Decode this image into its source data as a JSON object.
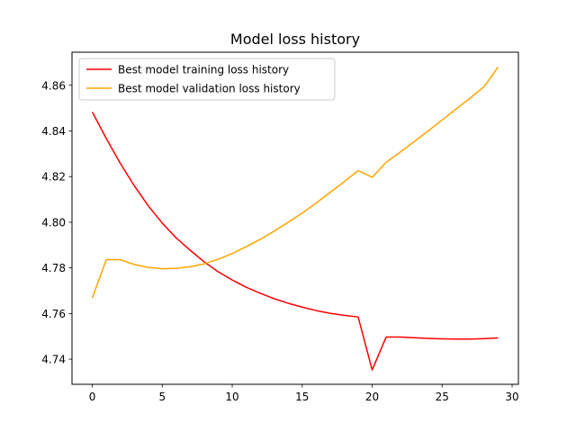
{
  "chart_data": {
    "type": "line",
    "title": "Model loss history",
    "xlabel": "",
    "ylabel": "",
    "xlim": [
      -1.45,
      30.45
    ],
    "ylim": [
      4.729,
      4.8745
    ],
    "x_ticks": [
      0,
      5,
      10,
      15,
      20,
      25,
      30
    ],
    "y_ticks": [
      4.74,
      4.76,
      4.78,
      4.8,
      4.82,
      4.84,
      4.86
    ],
    "grid": false,
    "legend_position": "top-left",
    "series": [
      {
        "name": "Best model training loss history",
        "color": "#ff0000",
        "x": [
          0,
          1,
          2,
          3,
          4,
          5,
          6,
          7,
          8,
          9,
          10,
          11,
          12,
          13,
          14,
          15,
          16,
          17,
          18,
          19,
          20,
          21,
          22,
          23,
          24,
          25,
          26,
          27,
          28,
          29
        ],
        "values": [
          4.8483,
          4.8367,
          4.8258,
          4.816,
          4.8072,
          4.7996,
          4.7931,
          4.7877,
          4.7826,
          4.7783,
          4.7747,
          4.7715,
          4.7689,
          4.7665,
          4.7645,
          4.7628,
          4.7613,
          4.7601,
          4.7592,
          4.7585,
          4.7353,
          4.7497,
          4.7497,
          4.7494,
          4.7491,
          4.7489,
          4.7488,
          4.7488,
          4.749,
          4.7493
        ]
      },
      {
        "name": "Best model validation loss history",
        "color": "#ffa500",
        "x": [
          0,
          1,
          2,
          3,
          4,
          5,
          6,
          7,
          8,
          9,
          10,
          11,
          12,
          13,
          14,
          15,
          16,
          17,
          18,
          19,
          20,
          21,
          22,
          23,
          24,
          25,
          26,
          27,
          28,
          29
        ],
        "values": [
          4.7668,
          4.7836,
          4.7836,
          4.7815,
          4.7802,
          4.7796,
          4.7798,
          4.7805,
          4.7818,
          4.7838,
          4.7863,
          4.7893,
          4.7925,
          4.7961,
          4.8,
          4.804,
          4.8084,
          4.8131,
          4.8178,
          4.8226,
          4.8197,
          4.8263,
          4.8307,
          4.8353,
          4.84,
          4.8448,
          4.8496,
          4.8544,
          4.8594,
          4.868
        ]
      }
    ]
  }
}
